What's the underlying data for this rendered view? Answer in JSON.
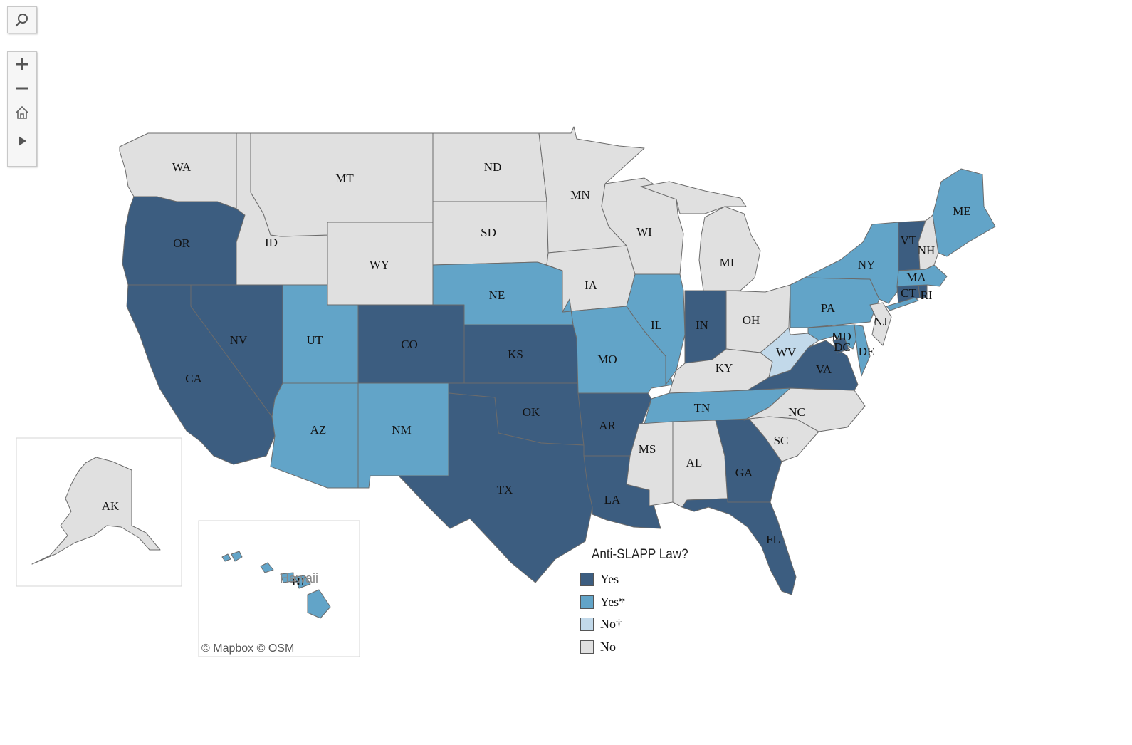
{
  "colors": {
    "yes": "#3c5d80",
    "yes_star": "#62a4c8",
    "no_dagger": "#c2d9ea",
    "no": "#e0e0e0"
  },
  "controls": {
    "search": "search-icon",
    "zoom_in": "plus-icon",
    "zoom_out": "minus-icon",
    "home": "home-icon",
    "play": "play-icon"
  },
  "legend": {
    "title": "Anti-SLAPP Law?",
    "items": [
      {
        "key": "yes",
        "label": "Yes"
      },
      {
        "key": "yes_star",
        "label": "Yes*"
      },
      {
        "key": "no_dagger",
        "label": "No†"
      },
      {
        "key": "no",
        "label": "No"
      }
    ]
  },
  "insets": {
    "hawaii_name": "Hawaii",
    "attribution": "© Mapbox  © OSM"
  },
  "states": [
    {
      "abbr": "WA",
      "status": "no"
    },
    {
      "abbr": "OR",
      "status": "yes"
    },
    {
      "abbr": "CA",
      "status": "yes"
    },
    {
      "abbr": "ID",
      "status": "no"
    },
    {
      "abbr": "NV",
      "status": "yes"
    },
    {
      "abbr": "MT",
      "status": "no"
    },
    {
      "abbr": "WY",
      "status": "no"
    },
    {
      "abbr": "UT",
      "status": "yes_star"
    },
    {
      "abbr": "AZ",
      "status": "yes_star"
    },
    {
      "abbr": "CO",
      "status": "yes"
    },
    {
      "abbr": "NM",
      "status": "yes_star"
    },
    {
      "abbr": "ND",
      "status": "no"
    },
    {
      "abbr": "SD",
      "status": "no"
    },
    {
      "abbr": "NE",
      "status": "yes_star"
    },
    {
      "abbr": "KS",
      "status": "yes"
    },
    {
      "abbr": "OK",
      "status": "yes"
    },
    {
      "abbr": "TX",
      "status": "yes"
    },
    {
      "abbr": "MN",
      "status": "no"
    },
    {
      "abbr": "IA",
      "status": "no"
    },
    {
      "abbr": "MO",
      "status": "yes_star"
    },
    {
      "abbr": "AR",
      "status": "yes"
    },
    {
      "abbr": "LA",
      "status": "yes"
    },
    {
      "abbr": "WI",
      "status": "no"
    },
    {
      "abbr": "IL",
      "status": "yes_star"
    },
    {
      "abbr": "MI",
      "status": "no"
    },
    {
      "abbr": "IN",
      "status": "yes"
    },
    {
      "abbr": "OH",
      "status": "no"
    },
    {
      "abbr": "KY",
      "status": "no"
    },
    {
      "abbr": "TN",
      "status": "yes_star"
    },
    {
      "abbr": "MS",
      "status": "no"
    },
    {
      "abbr": "AL",
      "status": "no"
    },
    {
      "abbr": "GA",
      "status": "yes"
    },
    {
      "abbr": "FL",
      "status": "yes"
    },
    {
      "abbr": "SC",
      "status": "no"
    },
    {
      "abbr": "NC",
      "status": "no"
    },
    {
      "abbr": "VA",
      "status": "yes"
    },
    {
      "abbr": "WV",
      "status": "no_dagger"
    },
    {
      "abbr": "MD",
      "status": "yes_star"
    },
    {
      "abbr": "DC",
      "status": "yes"
    },
    {
      "abbr": "DE",
      "status": "yes_star"
    },
    {
      "abbr": "PA",
      "status": "yes_star"
    },
    {
      "abbr": "NJ",
      "status": "no"
    },
    {
      "abbr": "NY",
      "status": "yes_star"
    },
    {
      "abbr": "CT",
      "status": "yes"
    },
    {
      "abbr": "RI",
      "status": "yes"
    },
    {
      "abbr": "MA",
      "status": "yes_star"
    },
    {
      "abbr": "VT",
      "status": "yes"
    },
    {
      "abbr": "NH",
      "status": "no"
    },
    {
      "abbr": "ME",
      "status": "yes_star"
    },
    {
      "abbr": "AK",
      "status": "no"
    },
    {
      "abbr": "HI",
      "status": "yes_star"
    }
  ]
}
